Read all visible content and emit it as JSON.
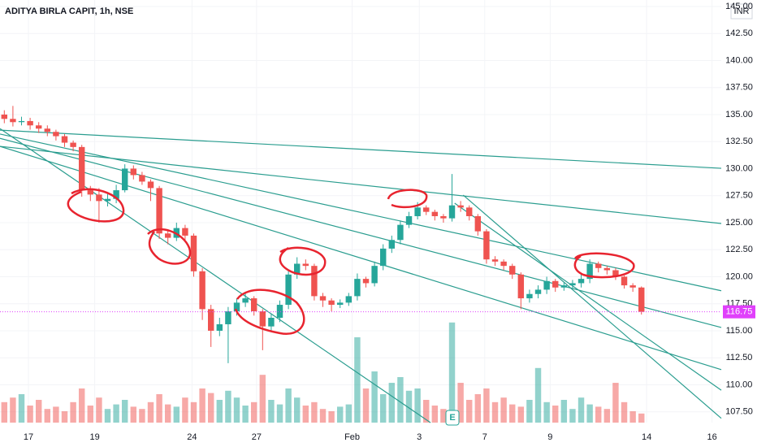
{
  "chart_data": {
    "type": "candlestick",
    "title": "ADITYA BIRLA CAPIT, 1h, NSE",
    "currency": "INR",
    "event_label": "E",
    "up_color": "#26a69a",
    "down_color": "#ef5350",
    "line_color": "#2a9d8f",
    "price_color": "#e040fb",
    "open": [
      135.0,
      134.6,
      134.3,
      134.4,
      134.0,
      133.7,
      133.4,
      133.0,
      132.4,
      132.0,
      128.0,
      127.6,
      127.0,
      127.2,
      128.0,
      130.0,
      129.4,
      128.8,
      128.2,
      124.0,
      123.6,
      124.5,
      123.8,
      120.5,
      117.0,
      115.0,
      115.6,
      116.8,
      117.6,
      118.0,
      116.8,
      115.4,
      116.2,
      117.4,
      120.2,
      121.2,
      121.0,
      118.2,
      117.8,
      117.4,
      117.6,
      118.2,
      119.8,
      119.4,
      121.0,
      122.6,
      123.4,
      124.8,
      125.6,
      126.4,
      126.0,
      125.6,
      125.4,
      126.6,
      126.4,
      125.6,
      124.2,
      121.6,
      121.4,
      121.0,
      120.2,
      118.0,
      118.4,
      118.8,
      119.6,
      119.0,
      119.2,
      119.4,
      119.8,
      121.2,
      120.8,
      120.6,
      120.0,
      119.2,
      119.0
    ],
    "high": [
      135.4,
      135.8,
      134.8,
      134.7,
      134.3,
      134.0,
      133.6,
      133.2,
      132.6,
      132.2,
      128.4,
      128.2,
      127.8,
      128.5,
      130.4,
      130.3,
      129.7,
      129.0,
      128.4,
      124.4,
      125.0,
      124.8,
      124.0,
      120.8,
      117.4,
      116.2,
      117.2,
      118.0,
      118.6,
      118.2,
      117.0,
      116.6,
      117.8,
      120.6,
      121.8,
      121.6,
      121.2,
      118.5,
      118.0,
      117.9,
      118.5,
      120.3,
      120.0,
      121.4,
      123.0,
      123.8,
      125.2,
      126.0,
      126.9,
      126.6,
      126.2,
      125.8,
      129.5,
      127.0,
      126.6,
      125.8,
      124.4,
      121.9,
      121.6,
      121.2,
      120.4,
      118.8,
      119.2,
      120.0,
      119.8,
      119.5,
      119.7,
      120.2,
      121.6,
      121.4,
      121.0,
      120.8,
      120.1,
      119.4,
      119.1
    ],
    "low": [
      134.2,
      133.9,
      134.0,
      133.6,
      133.3,
      133.0,
      132.6,
      132.0,
      131.6,
      127.4,
      127.0,
      125.0,
      126.5,
      126.8,
      127.8,
      129.0,
      128.5,
      127.0,
      123.5,
      123.0,
      123.3,
      123.4,
      120.0,
      116.0,
      113.5,
      114.5,
      112.0,
      116.4,
      117.2,
      116.4,
      113.2,
      115.0,
      115.8,
      117.0,
      119.8,
      120.6,
      117.8,
      117.2,
      116.8,
      117.1,
      117.3,
      117.8,
      119.0,
      119.1,
      120.6,
      122.2,
      123.0,
      124.5,
      125.3,
      125.7,
      125.2,
      125.0,
      125.1,
      126.0,
      125.2,
      123.8,
      121.2,
      121.0,
      120.6,
      119.8,
      117.0,
      117.6,
      118.0,
      118.4,
      118.6,
      118.7,
      118.9,
      119.0,
      119.4,
      120.4,
      120.2,
      119.7,
      118.9,
      118.6,
      116.5
    ],
    "close": [
      134.6,
      134.3,
      134.4,
      134.0,
      133.7,
      133.4,
      133.0,
      132.4,
      132.0,
      128.0,
      127.6,
      127.0,
      127.2,
      128.0,
      130.0,
      129.4,
      128.8,
      128.2,
      124.0,
      123.6,
      124.5,
      123.8,
      120.5,
      117.0,
      115.0,
      115.6,
      116.8,
      117.6,
      118.0,
      116.8,
      115.4,
      116.2,
      117.4,
      120.2,
      121.2,
      121.0,
      118.2,
      117.8,
      117.4,
      117.6,
      118.2,
      119.8,
      119.4,
      121.0,
      122.6,
      123.4,
      124.8,
      125.6,
      126.4,
      126.0,
      125.6,
      125.4,
      126.6,
      126.4,
      125.6,
      124.2,
      121.6,
      121.4,
      121.0,
      120.2,
      118.0,
      118.4,
      118.8,
      119.6,
      119.0,
      119.2,
      119.4,
      119.8,
      121.2,
      120.8,
      120.6,
      120.0,
      119.2,
      119.0,
      116.75
    ],
    "volume": [
      18,
      22,
      25,
      15,
      20,
      12,
      14,
      10,
      18,
      30,
      15,
      22,
      12,
      16,
      20,
      14,
      12,
      18,
      25,
      16,
      14,
      22,
      18,
      30,
      26,
      20,
      28,
      22,
      15,
      18,
      42,
      20,
      16,
      30,
      22,
      15,
      18,
      12,
      10,
      14,
      16,
      75,
      30,
      45,
      25,
      35,
      40,
      28,
      30,
      20,
      15,
      12,
      88,
      35,
      20,
      25,
      30,
      18,
      22,
      16,
      14,
      20,
      48,
      18,
      15,
      20,
      12,
      22,
      16,
      14,
      12,
      35,
      18,
      10,
      8
    ],
    "volume_lim": [
      0,
      100
    ],
    "trendlines": [
      [
        0,
        133.56,
        83.77,
        130.03
      ],
      [
        0,
        132.06,
        83.77,
        124.92
      ],
      [
        0,
        133.2,
        83.77,
        118.7
      ],
      [
        0,
        132.8,
        83.77,
        115.3
      ],
      [
        0,
        132.06,
        83.77,
        111.4
      ],
      [
        0,
        133.7,
        50,
        106.5
      ],
      [
        53.8,
        127.55,
        83.77,
        106.9
      ],
      [
        52.8,
        126.8,
        83.77,
        109.5
      ]
    ],
    "xlim": [
      0,
      83.77
    ],
    "ylim": [
      106.5,
      145.6
    ],
    "xticks": [
      {
        "value": 3.3,
        "label": "17"
      },
      {
        "value": 11.0,
        "label": "19"
      },
      {
        "value": 22.3,
        "label": "24"
      },
      {
        "value": 29.8,
        "label": "27"
      },
      {
        "value": 40.9,
        "label": "Feb"
      },
      {
        "value": 48.7,
        "label": "3"
      },
      {
        "value": 56.3,
        "label": "7"
      },
      {
        "value": 63.9,
        "label": "9"
      },
      {
        "value": 75.1,
        "label": "14"
      },
      {
        "value": 82.7,
        "label": "16"
      }
    ],
    "yticks": [
      {
        "value": 107.5,
        "label": "107.50"
      },
      {
        "value": 110,
        "label": "110.00"
      },
      {
        "value": 112.5,
        "label": "112.50"
      },
      {
        "value": 115,
        "label": "115.00"
      },
      {
        "value": 117.5,
        "label": "117.50"
      },
      {
        "value": 120,
        "label": "120.00"
      },
      {
        "value": 122.5,
        "label": "122.50"
      },
      {
        "value": 125,
        "label": "125.00"
      },
      {
        "value": 127.5,
        "label": "127.50"
      },
      {
        "value": 130,
        "label": "130.00"
      },
      {
        "value": 132.5,
        "label": "132.50"
      },
      {
        "value": 135,
        "label": "135.00"
      },
      {
        "value": 137.5,
        "label": "137.50"
      },
      {
        "value": 140,
        "label": "140.00"
      },
      {
        "value": 142.5,
        "label": "142.50"
      },
      {
        "value": 145,
        "label": "145.00"
      }
    ]
  }
}
